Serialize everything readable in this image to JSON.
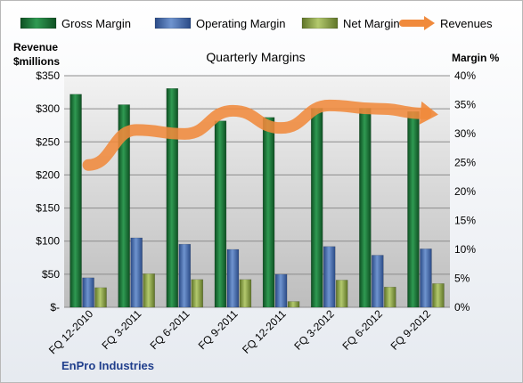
{
  "chart_data": {
    "type": "bar",
    "title": "Quarterly Margins",
    "company": "EnPro Industries",
    "categories": [
      "FQ 12-2010",
      "FQ 3-2011",
      "FQ 6-2011",
      "FQ 9-2011",
      "FQ 12-2011",
      "FQ 3-2012",
      "FQ 6-2012",
      "FQ 9-2012"
    ],
    "series": [
      {
        "name": "Gross Margin",
        "axis": "right",
        "unit": "%",
        "color": "#1b7a3a",
        "values": [
          36.8,
          35.0,
          37.8,
          32.2,
          32.8,
          34.4,
          34.4,
          33.8
        ]
      },
      {
        "name": "Operating Margin",
        "axis": "right",
        "unit": "%",
        "color": "#4a74b8",
        "values": [
          5.1,
          12.0,
          10.9,
          10.0,
          5.7,
          10.5,
          9.0,
          10.1
        ]
      },
      {
        "name": "Net Margin",
        "axis": "right",
        "unit": "%",
        "color": "#8fa84a",
        "values": [
          3.4,
          5.8,
          4.8,
          4.8,
          1.0,
          4.7,
          3.5,
          4.1
        ]
      },
      {
        "name": "Revenues",
        "axis": "left",
        "unit": "$millions",
        "type": "line",
        "color": "#f08a3c",
        "values": [
          215,
          268,
          262,
          297,
          271,
          305,
          300,
          293
        ]
      }
    ],
    "left_axis": {
      "title_line1": "Revenue",
      "title_line2": "$millions",
      "range": [
        0,
        350
      ],
      "ticks": [
        "$-",
        "$50",
        "$100",
        "$150",
        "$200",
        "$250",
        "$300",
        "$350"
      ]
    },
    "right_axis": {
      "title": "Margin %",
      "range": [
        0,
        40
      ],
      "ticks": [
        "0%",
        "5%",
        "10%",
        "15%",
        "20%",
        "25%",
        "30%",
        "35%",
        "40%"
      ]
    },
    "legend_position": "top",
    "grid": true,
    "plot_background": "#c0c0c0"
  }
}
